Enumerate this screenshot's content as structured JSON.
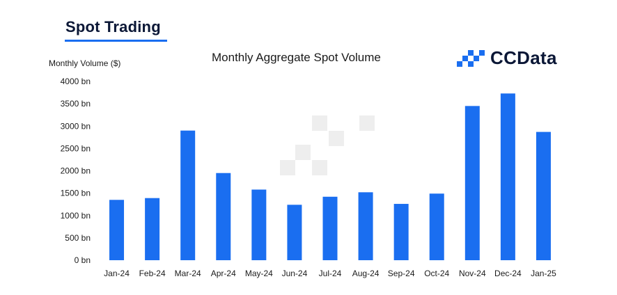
{
  "header": {
    "section_title": "Spot Trading",
    "brand_name": "CCData"
  },
  "colors": {
    "bar": "#1a6ef0",
    "accent": "#1a6ef0",
    "watermark": "#eeeeee"
  },
  "chart_data": {
    "type": "bar",
    "title": "Monthly Aggregate Spot Volume",
    "ylabel": "Monthly Volume ($)",
    "xlabel": "",
    "ylim": [
      0,
      4000
    ],
    "yticks": [
      0,
      500,
      1000,
      1500,
      2000,
      2500,
      3000,
      3500,
      4000
    ],
    "ytick_labels": [
      "0 bn",
      "500 bn",
      "1000 bn",
      "1500 bn",
      "2000 bn",
      "2500 bn",
      "3000 bn",
      "3500 bn",
      "4000 bn"
    ],
    "grid": false,
    "legend": "none",
    "categories": [
      "Jan-24",
      "Feb-24",
      "Mar-24",
      "Apr-24",
      "May-24",
      "Jun-24",
      "Jul-24",
      "Aug-24",
      "Sep-24",
      "Oct-24",
      "Nov-24",
      "Dec-24",
      "Jan-25"
    ],
    "values": [
      1350,
      1390,
      2900,
      1950,
      1580,
      1240,
      1420,
      1520,
      1260,
      1490,
      3450,
      3730,
      2870
    ]
  }
}
